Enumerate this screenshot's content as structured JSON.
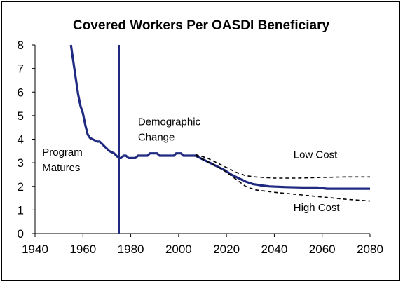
{
  "chart_data": {
    "type": "line",
    "title": "Covered Workers Per OASDI Beneficiary",
    "xlabel": "",
    "ylabel": "",
    "xlim": [
      1940,
      2080
    ],
    "ylim": [
      0,
      8
    ],
    "x_ticks": [
      1940,
      1960,
      1980,
      2000,
      2020,
      2040,
      2060,
      2080
    ],
    "y_ticks": [
      0,
      1,
      2,
      3,
      4,
      5,
      6,
      7,
      8
    ],
    "grid": false,
    "legend": "none",
    "vertical_marker": {
      "x": 1975,
      "color": "#1f2a80"
    },
    "annotations": [
      {
        "text_lines": [
          "Program",
          "Matures"
        ],
        "x": 1943,
        "y": 3.3
      },
      {
        "text_lines": [
          "Demographic",
          "Change"
        ],
        "x": 1983,
        "y": 4.6
      },
      {
        "text_lines": [
          "Low Cost"
        ],
        "x": 2048,
        "y": 3.2
      },
      {
        "text_lines": [
          "High Cost"
        ],
        "x": 2048,
        "y": 0.95
      }
    ],
    "series": [
      {
        "style": "solid",
        "color": "#1f2a80",
        "points": [
          [
            1955,
            8.0
          ],
          [
            1956,
            7.3
          ],
          [
            1957,
            6.6
          ],
          [
            1958,
            5.9
          ],
          [
            1959,
            5.4
          ],
          [
            1960,
            5.1
          ],
          [
            1961,
            4.6
          ],
          [
            1962,
            4.2
          ],
          [
            1963,
            4.05
          ],
          [
            1964,
            4.0
          ],
          [
            1965,
            3.95
          ],
          [
            1966,
            3.9
          ],
          [
            1967,
            3.9
          ],
          [
            1968,
            3.8
          ],
          [
            1969,
            3.7
          ],
          [
            1970,
            3.6
          ],
          [
            1971,
            3.5
          ],
          [
            1972,
            3.45
          ],
          [
            1973,
            3.4
          ],
          [
            1974,
            3.3
          ],
          [
            1975,
            3.2
          ],
          [
            1976,
            3.2
          ],
          [
            1977,
            3.3
          ],
          [
            1978,
            3.3
          ],
          [
            1979,
            3.2
          ],
          [
            1980,
            3.2
          ],
          [
            1982,
            3.2
          ],
          [
            1983,
            3.3
          ],
          [
            1987,
            3.3
          ],
          [
            1988,
            3.4
          ],
          [
            1991,
            3.4
          ],
          [
            1992,
            3.3
          ],
          [
            1998,
            3.3
          ],
          [
            1999,
            3.4
          ],
          [
            2001,
            3.4
          ],
          [
            2002,
            3.3
          ],
          [
            2007,
            3.3
          ],
          [
            2010,
            3.15
          ],
          [
            2013,
            3.0
          ],
          [
            2016,
            2.85
          ],
          [
            2019,
            2.7
          ],
          [
            2022,
            2.5
          ],
          [
            2025,
            2.35
          ],
          [
            2028,
            2.2
          ],
          [
            2031,
            2.1
          ],
          [
            2034,
            2.05
          ],
          [
            2038,
            2.0
          ],
          [
            2045,
            1.97
          ],
          [
            2052,
            1.95
          ],
          [
            2058,
            1.95
          ],
          [
            2062,
            1.9
          ],
          [
            2070,
            1.9
          ],
          [
            2080,
            1.9
          ]
        ]
      },
      {
        "name": "Low Cost",
        "style": "dashed",
        "color": "#000000",
        "points": [
          [
            2007,
            3.35
          ],
          [
            2012,
            3.2
          ],
          [
            2016,
            3.0
          ],
          [
            2020,
            2.8
          ],
          [
            2024,
            2.6
          ],
          [
            2028,
            2.45
          ],
          [
            2032,
            2.4
          ],
          [
            2040,
            2.35
          ],
          [
            2050,
            2.35
          ],
          [
            2060,
            2.38
          ],
          [
            2070,
            2.4
          ],
          [
            2080,
            2.4
          ]
        ]
      },
      {
        "name": "High Cost",
        "style": "dashed",
        "color": "#000000",
        "points": [
          [
            2007,
            3.3
          ],
          [
            2012,
            3.05
          ],
          [
            2016,
            2.85
          ],
          [
            2020,
            2.6
          ],
          [
            2024,
            2.3
          ],
          [
            2028,
            2.0
          ],
          [
            2032,
            1.85
          ],
          [
            2040,
            1.75
          ],
          [
            2050,
            1.65
          ],
          [
            2060,
            1.55
          ],
          [
            2070,
            1.45
          ],
          [
            2080,
            1.38
          ]
        ]
      }
    ]
  }
}
